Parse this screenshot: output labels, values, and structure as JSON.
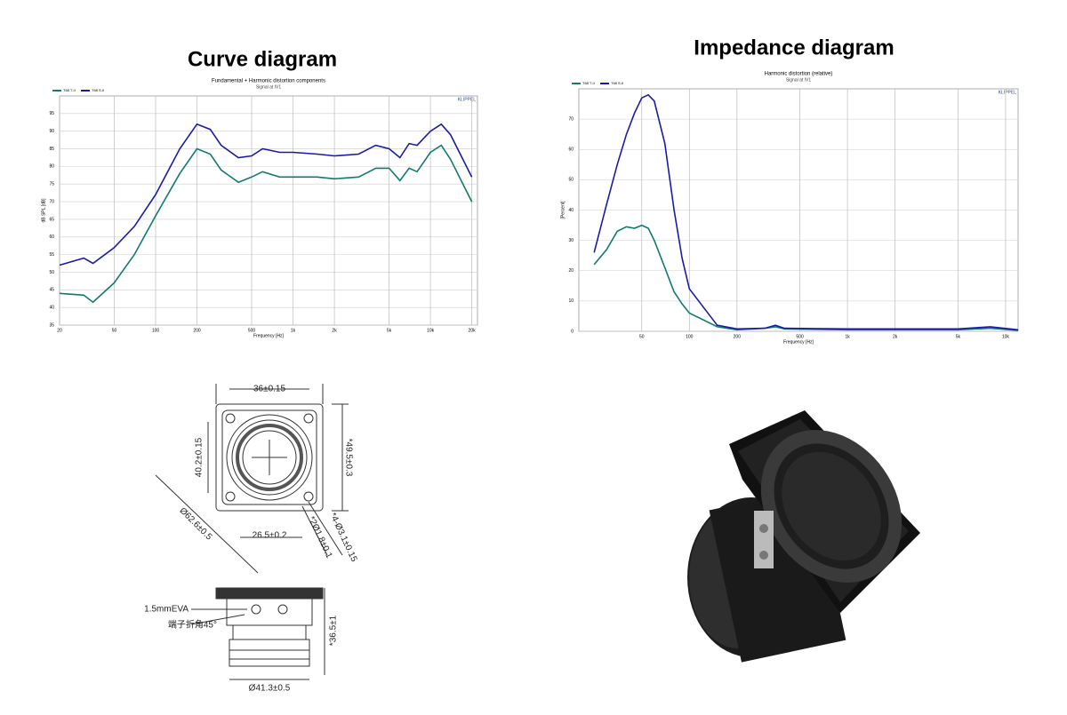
{
  "chart_data": [
    {
      "type": "line",
      "heading": "Curve diagram",
      "title": "Fundamental + Harmonic distortion components",
      "subtitle": "Signal at IV1",
      "brand": "KLIPPEL",
      "xlabel": "Frequency [Hz]",
      "ylabel": "dB SPL [dB]",
      "log_x": true,
      "grid": true,
      "xlim": [
        20,
        22000
      ],
      "xticks": [
        20,
        50,
        100,
        200,
        500,
        {
          "value": 1000,
          "label": "1k"
        },
        {
          "value": 2000,
          "label": "2k"
        },
        {
          "value": 5000,
          "label": "5k"
        },
        {
          "value": 10000,
          "label": "10k"
        },
        {
          "value": 20000,
          "label": "20k"
        }
      ],
      "ylim": [
        35,
        100
      ],
      "yticks": [
        35,
        40,
        45,
        50,
        55,
        60,
        65,
        70,
        75,
        80,
        85,
        90,
        95
      ],
      "x": [
        20,
        30,
        35,
        50,
        70,
        100,
        150,
        200,
        250,
        300,
        400,
        500,
        600,
        800,
        1000,
        1500,
        2000,
        3000,
        4000,
        5000,
        6000,
        7000,
        8000,
        10000,
        12000,
        14000,
        20000
      ],
      "series": [
        {
          "name": "T68 T-II",
          "color": "#127a6e",
          "values": [
            44,
            43.5,
            41.5,
            47,
            55,
            66,
            78,
            85,
            83.5,
            79,
            75.5,
            77,
            78.5,
            77,
            77,
            77,
            76.5,
            77,
            79.5,
            79.5,
            76,
            79.5,
            78.5,
            84,
            86,
            82,
            70
          ]
        },
        {
          "name": "T68 S-II",
          "color": "#1a1aa8",
          "values": [
            52,
            54,
            52.5,
            57,
            63,
            72,
            85,
            92,
            90.5,
            86,
            82.5,
            83,
            85,
            84,
            84,
            83.5,
            83,
            83.5,
            86,
            85,
            82.5,
            86.5,
            86,
            90,
            92,
            89,
            77
          ]
        }
      ]
    },
    {
      "type": "line",
      "heading": "Impedance diagram",
      "title": "Harmonic distortion (relative)",
      "subtitle": "Signal at IV1",
      "brand": "KLIPPEL",
      "xlabel": "Frequency [Hz]",
      "ylabel": "[Percent]",
      "log_x": true,
      "grid": true,
      "xlim": [
        20,
        12000
      ],
      "xticks": [
        50,
        100,
        200,
        500,
        {
          "value": 1000,
          "label": "1k"
        },
        {
          "value": 2000,
          "label": "2k"
        },
        {
          "value": 5000,
          "label": "5k"
        },
        {
          "value": 10000,
          "label": "10k"
        }
      ],
      "ylim": [
        0,
        80
      ],
      "yticks": [
        0,
        10,
        20,
        30,
        40,
        50,
        60,
        70
      ],
      "x": [
        25,
        30,
        35,
        40,
        45,
        50,
        55,
        60,
        70,
        80,
        90,
        100,
        150,
        200,
        300,
        350,
        400,
        1000,
        5000,
        8000,
        12000
      ],
      "series": [
        {
          "name": "T68 T-II",
          "color": "#127a6e",
          "values": [
            22,
            27,
            33,
            34.5,
            34,
            35,
            34,
            30,
            21,
            13,
            9,
            6,
            1.5,
            0.5,
            1,
            1.5,
            0.8,
            0.5,
            0.5,
            1,
            0.3
          ]
        },
        {
          "name": "T68 S-II",
          "color": "#1a1aa8",
          "values": [
            26,
            42,
            55,
            65,
            72,
            77,
            78,
            76,
            62,
            40,
            24,
            14,
            2,
            0.8,
            1,
            2,
            1,
            0.8,
            0.8,
            1.5,
            0.5
          ]
        }
      ]
    }
  ],
  "drawing": {
    "top_width": "36±0.15",
    "inner_height": "40.2±0.15",
    "outer_height": "*49.5±0.3",
    "diagonal": "Ø62.6±0.5",
    "hole_pitch": "26.5±0.2",
    "small_holes": "*2Ø1.8±0.1",
    "mount_holes": "*4-Ø3.1±0.15",
    "gasket": "1.5mmEVA",
    "terminal": "端子折角45°",
    "depth": "*36.5±1",
    "body_dia": "Ø41.3±0.5"
  }
}
